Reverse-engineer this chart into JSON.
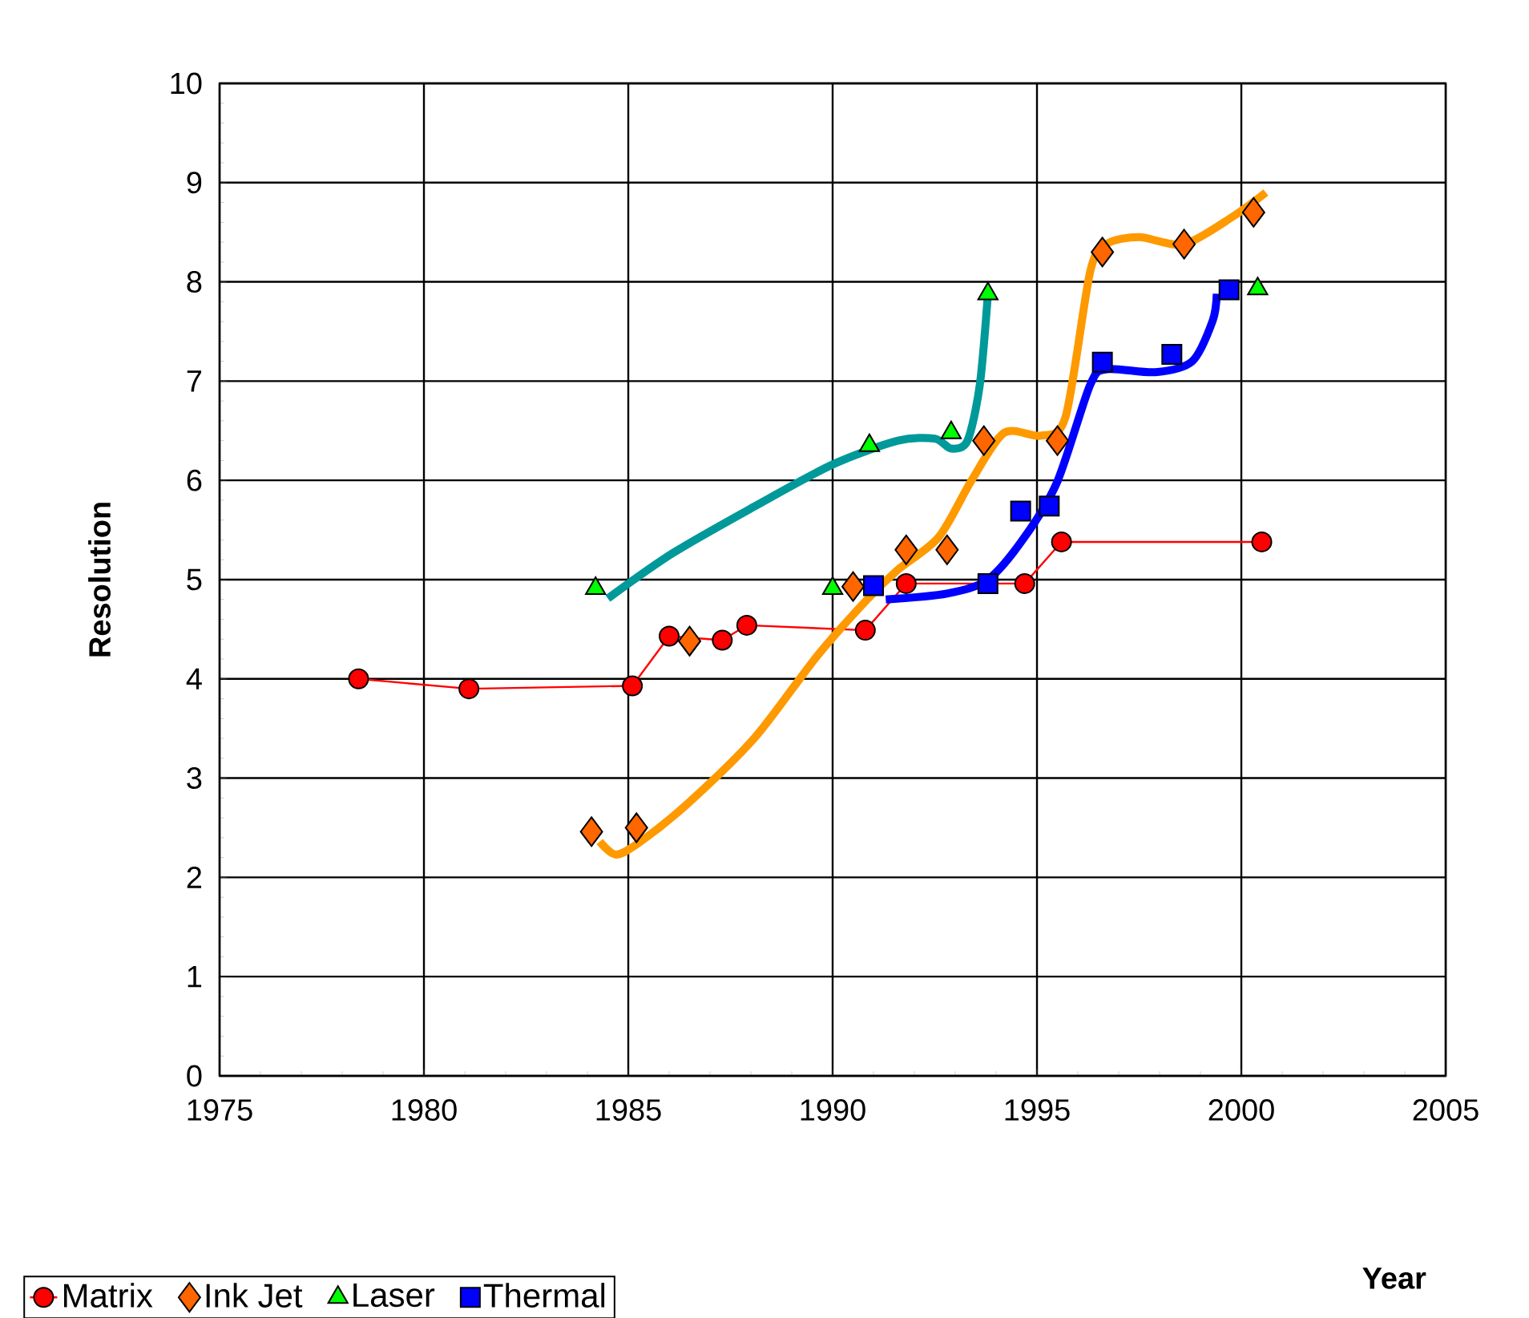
{
  "chart_data": {
    "type": "scatter",
    "xlabel": "Year",
    "ylabel": "Resolution",
    "xlim": [
      1975,
      2005
    ],
    "ylim": [
      0,
      10
    ],
    "xticks": [
      1975,
      1980,
      1985,
      1990,
      1995,
      2000,
      2005
    ],
    "yticks": [
      0,
      1,
      2,
      3,
      4,
      5,
      6,
      7,
      8,
      9,
      10
    ],
    "grid": true,
    "legend": "bottom left",
    "series": [
      {
        "name": "Matrix",
        "type": "line",
        "marker": "circle",
        "color": "#ff0000",
        "x": [
          1978.4,
          1981.1,
          1985.1,
          1986.0,
          1987.3,
          1987.9,
          1990.8,
          1991.8,
          1994.7,
          1995.6,
          2000.5
        ],
        "values": [
          4.0,
          3.9,
          3.93,
          4.43,
          4.39,
          4.54,
          4.49,
          4.96,
          4.96,
          5.38,
          5.38
        ]
      },
      {
        "name": "Ink Jet",
        "marker": "diamond",
        "color": "#ff6600",
        "x": [
          1984.1,
          1985.2,
          1986.5,
          1990.5,
          1991.8,
          1992.8,
          1993.7,
          1995.5,
          1996.6,
          1998.6,
          2000.3
        ],
        "values": [
          2.46,
          2.5,
          4.38,
          4.93,
          5.3,
          5.3,
          6.4,
          6.4,
          8.3,
          8.38,
          8.7
        ]
      },
      {
        "name": "Laser",
        "marker": "triangle",
        "color": "#00ff00",
        "x": [
          1984.2,
          1990.0,
          1990.9,
          1992.9,
          1993.8,
          2000.4
        ],
        "values": [
          4.91,
          4.91,
          6.35,
          6.48,
          7.88,
          7.93
        ]
      },
      {
        "name": "Thermal",
        "marker": "square",
        "color": "#0000ff",
        "x": [
          1991.0,
          1993.8,
          1994.6,
          1995.3,
          1996.6,
          1998.3,
          1999.7
        ],
        "values": [
          4.94,
          4.96,
          5.69,
          5.74,
          7.19,
          7.27,
          7.92
        ]
      },
      {
        "type": "line",
        "marker": "none",
        "color": "#ff9900",
        "x": [
          1984.3,
          1984.7,
          1985.3,
          1986.5,
          1988.1,
          1989.6,
          1990.8,
          1991.6,
          1992.6,
          1993.4,
          1994.2,
          1995.1,
          1995.7,
          1996.3,
          1996.7,
          1997.5,
          1998.6,
          1999.8,
          2000.6
        ],
        "values": [
          2.36,
          2.23,
          2.36,
          2.76,
          3.41,
          4.22,
          4.78,
          5.1,
          5.43,
          6.0,
          6.48,
          6.45,
          6.64,
          8.1,
          8.38,
          8.45,
          8.38,
          8.66,
          8.9
        ]
      },
      {
        "type": "line",
        "marker": "none",
        "color": "#009999",
        "x": [
          1984.5,
          1986.1,
          1988.1,
          1990.0,
          1991.6,
          1992.5,
          1992.9,
          1993.3,
          1993.6,
          1993.8
        ],
        "values": [
          4.81,
          5.27,
          5.74,
          6.16,
          6.4,
          6.42,
          6.32,
          6.4,
          6.96,
          7.88
        ]
      },
      {
        "type": "line",
        "marker": "none",
        "color": "#0000ff",
        "x": [
          1991.3,
          1992.8,
          1993.8,
          1994.7,
          1995.5,
          1996.3,
          1996.7,
          1997.9,
          1998.8,
          1999.3,
          1999.4
        ],
        "values": [
          4.8,
          4.86,
          5.0,
          5.43,
          5.99,
          6.96,
          7.12,
          7.09,
          7.2,
          7.61,
          7.88
        ]
      }
    ]
  }
}
